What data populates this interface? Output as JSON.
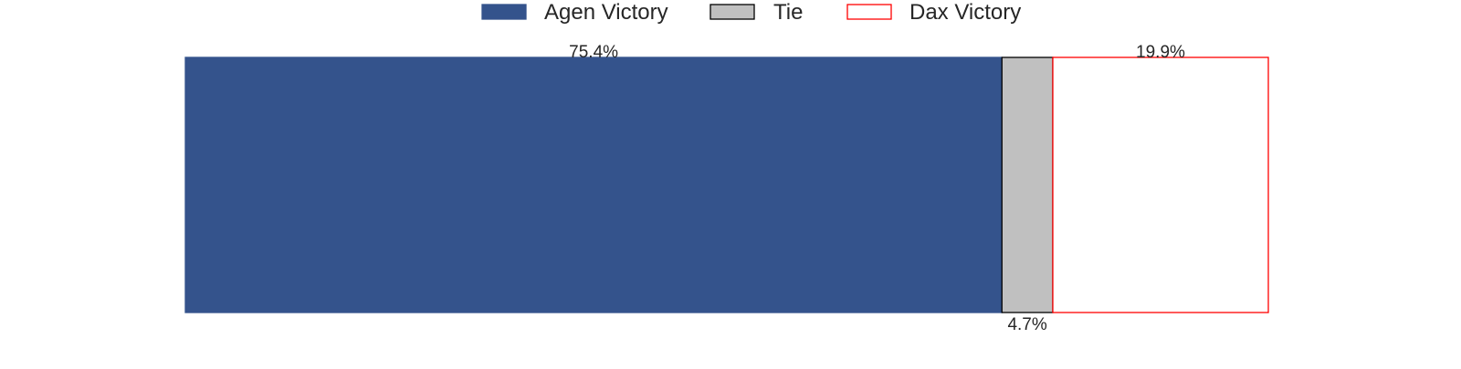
{
  "chart_data": {
    "type": "bar",
    "orientation": "horizontal-stacked",
    "xlim": [
      0,
      100
    ],
    "grid": false,
    "legend_position": "top-center",
    "segments": [
      {
        "name": "Agen Victory",
        "value": 75.4,
        "label": "75.4%",
        "fill": "#34538c",
        "stroke": "#34538c",
        "label_position": "above"
      },
      {
        "name": "Tie",
        "value": 4.7,
        "label": "4.7%",
        "fill": "#c0c0c0",
        "stroke": "#000000",
        "label_position": "below"
      },
      {
        "name": "Dax Victory",
        "value": 19.9,
        "label": "19.9%",
        "fill": "#ffffff",
        "stroke": "#ff0000",
        "label_position": "above"
      }
    ]
  },
  "legend": {
    "items": [
      {
        "label": "Agen Victory",
        "fill": "#34538c",
        "stroke": "#34538c"
      },
      {
        "label": "Tie",
        "fill": "#c0c0c0",
        "stroke": "#000000"
      },
      {
        "label": "Dax Victory",
        "fill": "#ffffff",
        "stroke": "#ff0000"
      }
    ]
  }
}
